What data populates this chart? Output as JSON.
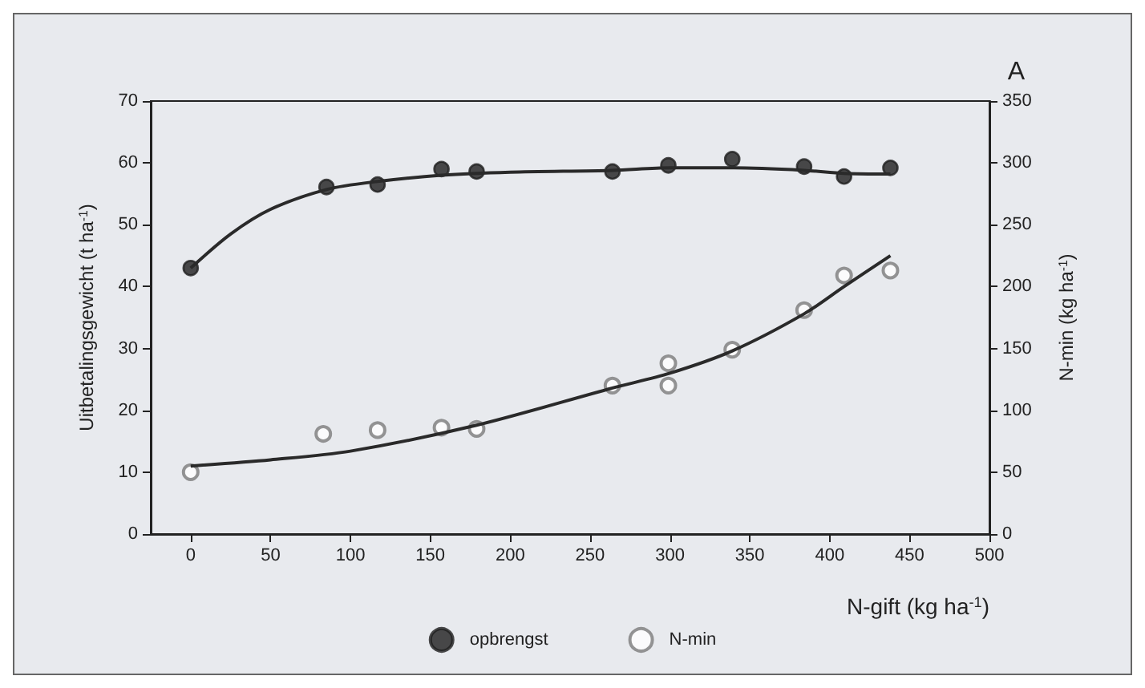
{
  "chart_data": {
    "type": "scatter",
    "annotations": [
      "A"
    ],
    "xlabel": "N-gift (kg ha$^{-1}$)",
    "ylabel": "Uitbetalingsgewicht (t ha$^{-1}$)",
    "y2label": "N-min (kg ha$^{-1}$)",
    "xlim": [
      -25,
      500
    ],
    "xticks": [
      0,
      50,
      100,
      150,
      200,
      250,
      300,
      350,
      400,
      450,
      500
    ],
    "ylim": [
      0,
      70
    ],
    "yticks": [
      0,
      10,
      20,
      30,
      40,
      50,
      60,
      70
    ],
    "y2lim": [
      0,
      350
    ],
    "y2ticks": [
      0,
      50,
      100,
      150,
      200,
      250,
      300,
      350
    ],
    "grid": false,
    "legend": "bottom",
    "marker": "circle",
    "series": [
      {
        "name": "opbrengst",
        "color": "#1e1e1e",
        "x": [
          0,
          85,
          117,
          157,
          179,
          264,
          299,
          339,
          384,
          409,
          438
        ],
        "values": [
          43,
          56.1,
          56.5,
          59,
          58.6,
          58.6,
          59.6,
          60.6,
          59.4,
          57.8,
          59.2
        ]
      },
      {
        "name": "N-min",
        "color": "#7a7a7a",
        "axis": "y2",
        "x": [
          0,
          83,
          117,
          157,
          179,
          264,
          299,
          299,
          339,
          384,
          409,
          438
        ],
        "values": [
          50,
          81,
          84,
          86,
          85,
          120,
          138,
          120,
          149,
          181,
          209,
          213
        ]
      },
      {
        "type": "line",
        "color": "#2a2a2a",
        "marker": "none",
        "x": [
          0,
          25,
          50,
          85,
          117,
          157,
          200,
          264,
          300,
          340,
          384,
          409,
          438
        ],
        "values": [
          43,
          48.5,
          52.5,
          55.7,
          57,
          58,
          58.5,
          58.8,
          59.2,
          59.2,
          58.8,
          58.3,
          58.2
        ]
      },
      {
        "type": "line",
        "color": "#2a2a2a",
        "marker": "none",
        "axis": "y2",
        "x": [
          0,
          50,
          100,
          179,
          264,
          300,
          339,
          384,
          409,
          438
        ],
        "values": [
          55,
          60,
          67,
          88,
          118,
          130,
          148,
          178,
          200,
          225
        ]
      }
    ]
  }
}
